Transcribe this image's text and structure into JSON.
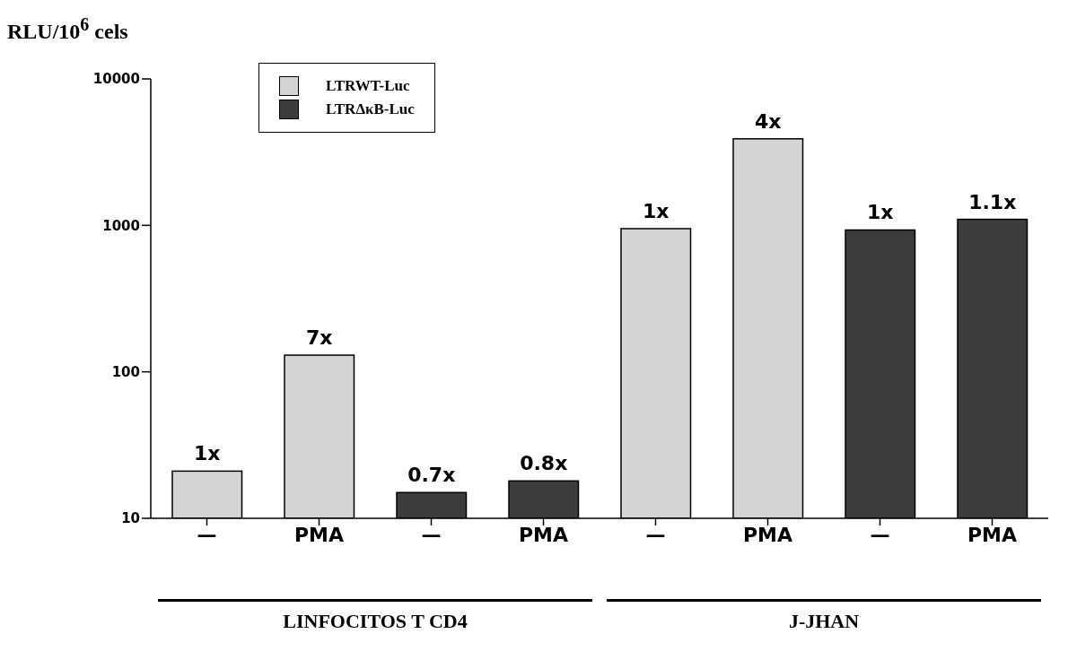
{
  "chart_data": {
    "type": "bar",
    "ylabel": "RLU/10$^{6}$ cels",
    "categories": [
      "—",
      "PMA",
      "—",
      "PMA",
      "—",
      "PMA",
      "—",
      "PMA"
    ],
    "series": [
      {
        "name": "LTRWT-Luc",
        "color": "#d4d4d4",
        "values": [
          21,
          130,
          null,
          null,
          950,
          3900,
          null,
          null
        ]
      },
      {
        "name": "LTRΔκB-Luc",
        "color": "#3c3c3c",
        "values": [
          null,
          null,
          15,
          18,
          null,
          null,
          930,
          1100
        ]
      }
    ],
    "log": true,
    "ylim": [
      10,
      10000
    ],
    "yticks": [
      10,
      100,
      1000,
      10000
    ],
    "legend": "top left",
    "annotations": [
      "LINFOCITOS T CD4",
      "J-JHAN",
      "1x",
      "7x",
      "0.7x",
      "0.8x",
      "1x",
      "4x",
      "1x",
      "1.1x"
    ]
  }
}
